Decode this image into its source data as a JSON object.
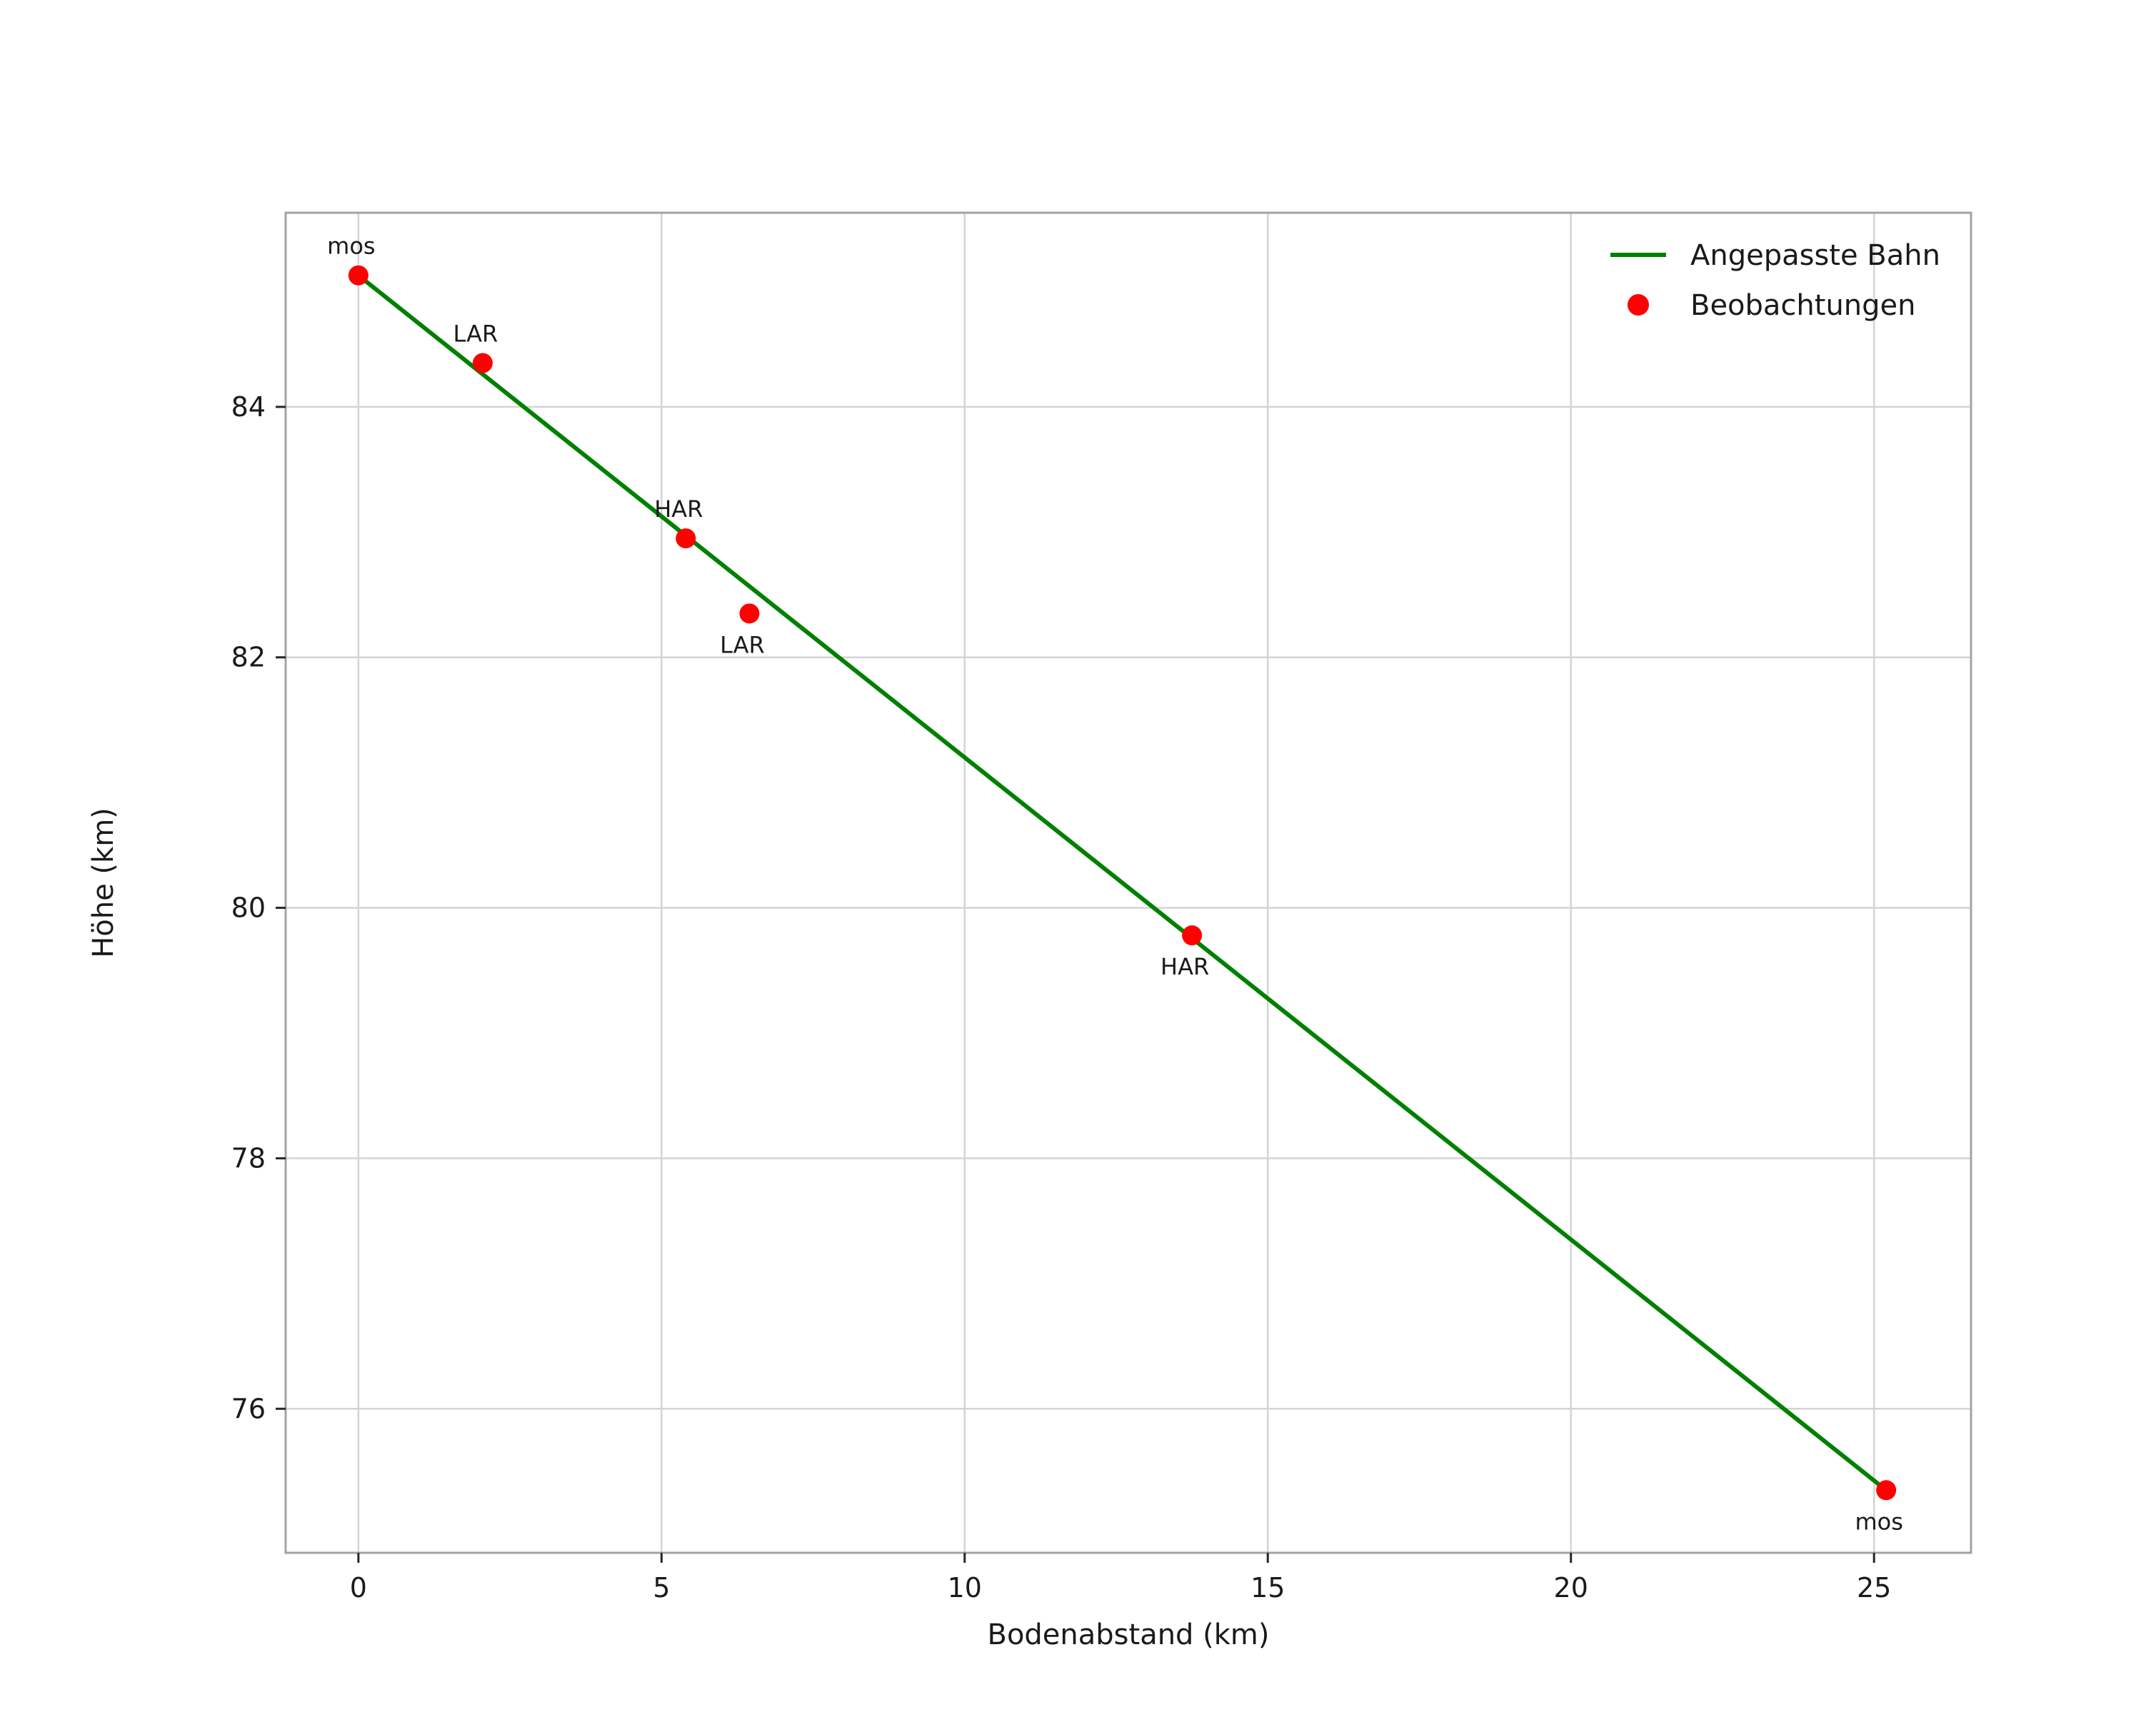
{
  "chart_data": {
    "type": "scatter",
    "title": "",
    "xlabel": "Bodenabstand (km)",
    "ylabel": "Höhe (km)",
    "xlim": [
      -1.2,
      26.6
    ],
    "ylim": [
      74.85,
      85.55
    ],
    "xticks": [
      0,
      5,
      10,
      15,
      20,
      25
    ],
    "yticks": [
      76,
      78,
      80,
      82,
      84
    ],
    "grid": true,
    "grid_color": "#d4d4d4",
    "spine_color": "#a3a3a3",
    "legend": {
      "position": "upper-right",
      "entries": [
        {
          "label": "Angepasste Bahn",
          "type": "line",
          "color": "#008000"
        },
        {
          "label": "Beobachtungen",
          "type": "point",
          "color": "#ff0000"
        }
      ]
    },
    "series": [
      {
        "name": "Angepasste Bahn",
        "type": "line",
        "color": "#008000",
        "x": [
          0.0,
          25.2
        ],
        "y": [
          85.05,
          75.35
        ]
      },
      {
        "name": "Beobachtungen",
        "type": "scatter",
        "color": "#ff0000",
        "points": [
          {
            "x": 0.0,
            "y": 85.05,
            "label": "mos",
            "label_pos": "above"
          },
          {
            "x": 2.05,
            "y": 84.35,
            "label": "LAR",
            "label_pos": "above"
          },
          {
            "x": 5.4,
            "y": 82.95,
            "label": "HAR",
            "label_pos": "above"
          },
          {
            "x": 6.45,
            "y": 82.35,
            "label": "LAR",
            "label_pos": "below"
          },
          {
            "x": 13.75,
            "y": 79.78,
            "label": "HAR",
            "label_pos": "below"
          },
          {
            "x": 25.2,
            "y": 75.35,
            "label": "mos",
            "label_pos": "below"
          }
        ]
      }
    ]
  }
}
